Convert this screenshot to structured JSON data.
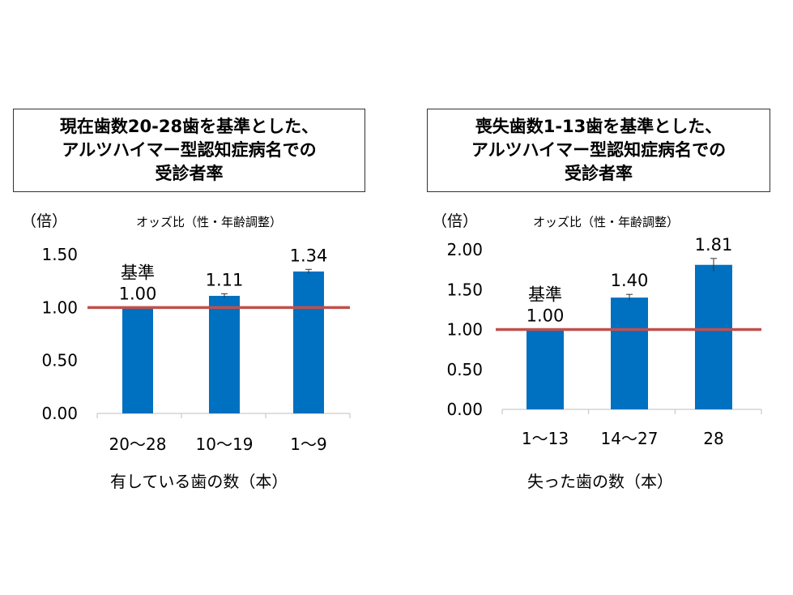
{
  "chart_data": [
    {
      "type": "bar",
      "title_lines": [
        "現在歯数20-28歯を基準とした、",
        "アルツハイマー型認知症病名での",
        "受診者率"
      ],
      "ylabel": "（倍）",
      "subtitle": "オッズ比（性・年齢調整）",
      "xlabel": "有している歯の数（本）",
      "categories": [
        "20〜28",
        "10〜19",
        "1〜9"
      ],
      "values": [
        1.0,
        1.11,
        1.34
      ],
      "errors": [
        0,
        0.02,
        0.02
      ],
      "value_labels": [
        "1.00",
        "1.11",
        "1.34"
      ],
      "annotation": "基準",
      "ylim": [
        0,
        1.5
      ],
      "yticks": [
        "0.00",
        "0.50",
        "1.00",
        "1.50"
      ],
      "reference_line": 1.0,
      "colors": {
        "bar": "#0070C0",
        "reference_line": "#C0504D"
      }
    },
    {
      "type": "bar",
      "title_lines": [
        "喪失歯数1-13歯を基準とした、",
        "アルツハイマー型認知症病名での",
        "受診者率"
      ],
      "ylabel": "（倍）",
      "subtitle": "オッズ比（性・年齢調整）",
      "xlabel": "失った歯の数（本）",
      "categories": [
        "1〜13",
        "14〜27",
        "28"
      ],
      "values": [
        1.0,
        1.4,
        1.81
      ],
      "errors": [
        0,
        0.04,
        0.08
      ],
      "value_labels": [
        "1.00",
        "1.40",
        "1.81"
      ],
      "annotation": "基準",
      "ylim": [
        0,
        2.0
      ],
      "yticks": [
        "0.00",
        "0.50",
        "1.00",
        "1.50",
        "2.00"
      ],
      "reference_line": 1.0,
      "colors": {
        "bar": "#0070C0",
        "reference_line": "#C0504D"
      }
    }
  ]
}
